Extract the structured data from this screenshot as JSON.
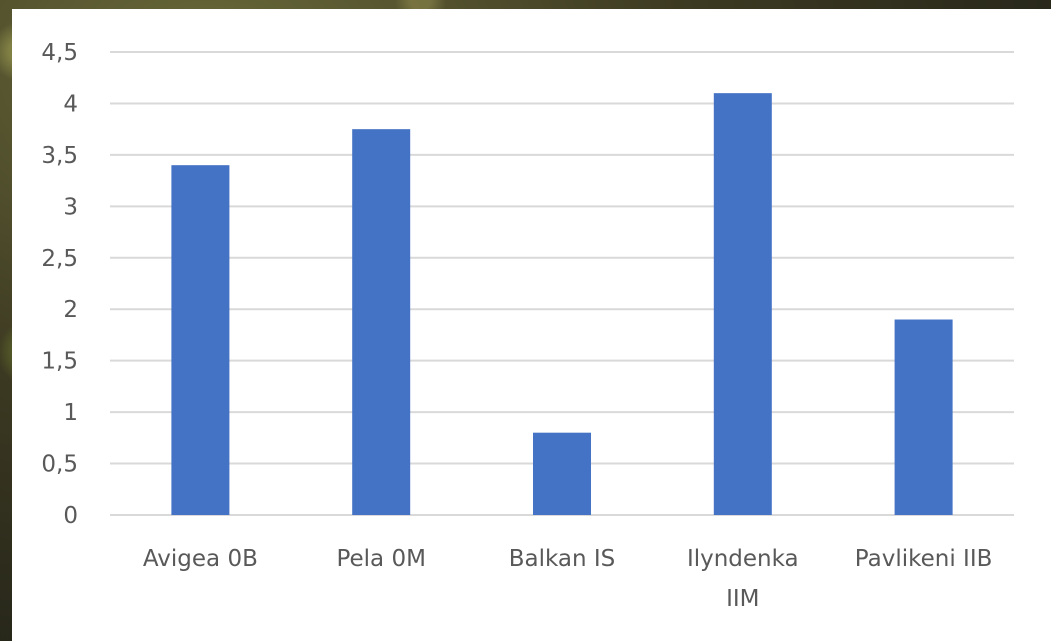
{
  "chart_data": {
    "type": "bar",
    "categories": [
      [
        "Avigea 0B"
      ],
      [
        "Pela 0M"
      ],
      [
        "Balkan IS"
      ],
      [
        "Ilyndenka",
        "IIM"
      ],
      [
        "Pavlikeni IIB"
      ]
    ],
    "values": [
      3.4,
      3.75,
      0.8,
      4.1,
      1.9
    ],
    "ylim": [
      0,
      4.5
    ],
    "yticks": [
      "0",
      "0,5",
      "1",
      "1,5",
      "2",
      "2,5",
      "3",
      "3,5",
      "4",
      "4,5"
    ],
    "grid": true,
    "title": "",
    "xlabel": "",
    "ylabel": "",
    "bar_color": "#4472C4",
    "grid_color": "#D9D9D9"
  }
}
